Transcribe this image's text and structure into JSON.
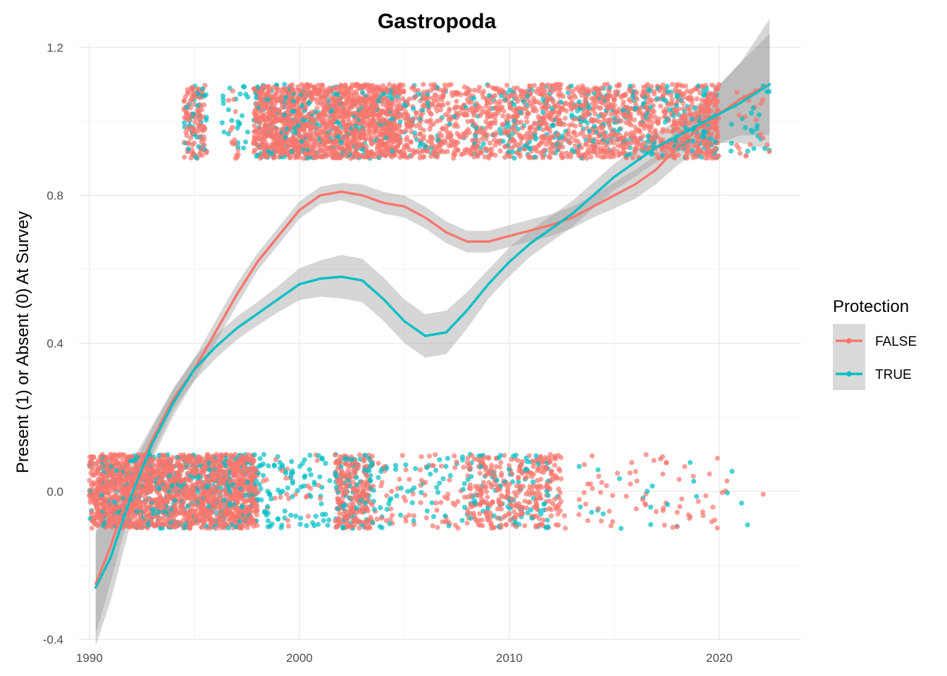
{
  "chart_data": {
    "type": "scatter",
    "title": "Gastropoda",
    "xlabel": "",
    "ylabel": "Present (1) or Absent (0) At Survey",
    "xlim": [
      1989.5,
      2023.9
    ],
    "ylim": [
      -0.4,
      1.21
    ],
    "x_ticks": [
      1990,
      2000,
      2010,
      2020
    ],
    "y_ticks": [
      -0.4,
      0.0,
      0.4,
      0.8,
      1.2
    ],
    "y_tick_labels": [
      "-0.4",
      "0.0",
      "0.4",
      "0.8",
      "1.2"
    ],
    "grid": true,
    "legend": {
      "title": "Protection",
      "placement": "right"
    },
    "jitter": {
      "height": 0.1
    },
    "series": [
      {
        "name": "FALSE",
        "color": "#F8766D",
        "present_ranges": [
          {
            "x": [
              1994.5,
              1995.6
            ],
            "n": 120
          },
          {
            "x": [
              1996.6,
              1997.1
            ],
            "n": 15
          },
          {
            "x": [
              1997.8,
              2004.8
            ],
            "n": 1500
          },
          {
            "x": [
              2004.8,
              2009.6
            ],
            "n": 420
          },
          {
            "x": [
              2009.6,
              2019.1
            ],
            "n": 950
          },
          {
            "x": [
              2019.1,
              2020.0
            ],
            "n": 130
          },
          {
            "x": [
              2020.8,
              2022.4
            ],
            "n": 20
          }
        ],
        "absent_ranges": [
          {
            "x": [
              1990.0,
              1998.0
            ],
            "n": 1900
          },
          {
            "x": [
              1998.0,
              2001.0
            ],
            "n": 25
          },
          {
            "x": [
              2001.7,
              2003.5
            ],
            "n": 260
          },
          {
            "x": [
              2003.5,
              2008.0
            ],
            "n": 70
          },
          {
            "x": [
              2008.0,
              2012.5
            ],
            "n": 330
          },
          {
            "x": [
              2012.5,
              2020.5
            ],
            "n": 70
          },
          {
            "x": [
              2022.0,
              2022.2
            ],
            "n": 1
          }
        ],
        "smooth": {
          "x": [
            1990.3,
            1991,
            1992,
            1993,
            1994,
            1995,
            1996,
            1997,
            1998,
            1999,
            2000,
            2001,
            2002,
            2003,
            2004,
            2005,
            2006,
            2007,
            2008,
            2009,
            2010,
            2011,
            2012,
            2013,
            2014,
            2015,
            2016,
            2017,
            2018,
            2019,
            2020,
            2021,
            2022.4
          ],
          "y": [
            -0.25,
            -0.15,
            0.02,
            0.14,
            0.25,
            0.33,
            0.43,
            0.53,
            0.62,
            0.69,
            0.76,
            0.8,
            0.81,
            0.8,
            0.78,
            0.77,
            0.74,
            0.7,
            0.675,
            0.675,
            0.69,
            0.705,
            0.72,
            0.74,
            0.77,
            0.8,
            0.83,
            0.87,
            0.93,
            0.98,
            1.02,
            1.06,
            1.1
          ],
          "se": [
            0.07,
            0.05,
            0.03,
            0.02,
            0.015,
            0.015,
            0.015,
            0.015,
            0.012,
            0.012,
            0.012,
            0.012,
            0.012,
            0.015,
            0.015,
            0.015,
            0.015,
            0.015,
            0.015,
            0.015,
            0.015,
            0.015,
            0.015,
            0.015,
            0.015,
            0.018,
            0.02,
            0.02,
            0.025,
            0.03,
            0.04,
            0.05,
            0.07
          ]
        }
      },
      {
        "name": "TRUE",
        "color": "#00BFC4",
        "present_ranges": [
          {
            "x": [
              1994.5,
              1995.6
            ],
            "n": 40
          },
          {
            "x": [
              1996.3,
              1997.6
            ],
            "n": 25
          },
          {
            "x": [
              1997.8,
              2004.8
            ],
            "n": 220
          },
          {
            "x": [
              2004.8,
              2009.6
            ],
            "n": 60
          },
          {
            "x": [
              2009.6,
              2019.1
            ],
            "n": 240
          },
          {
            "x": [
              2019.1,
              2020.0
            ],
            "n": 30
          },
          {
            "x": [
              2020.5,
              2022.5
            ],
            "n": 25
          }
        ],
        "absent_ranges": [
          {
            "x": [
              1990.0,
              1998.0
            ],
            "n": 350
          },
          {
            "x": [
              1998.0,
              2001.5
            ],
            "n": 90
          },
          {
            "x": [
              2001.7,
              2003.5
            ],
            "n": 80
          },
          {
            "x": [
              2003.5,
              2008.0
            ],
            "n": 55
          },
          {
            "x": [
              2008.0,
              2012.5
            ],
            "n": 90
          },
          {
            "x": [
              2012.5,
              2021.5
            ],
            "n": 22
          }
        ],
        "smooth": {
          "x": [
            1990.3,
            1991,
            1992,
            1993,
            1994,
            1995,
            1996,
            1997,
            1998,
            1999,
            2000,
            2001,
            2002,
            2003,
            2004,
            2005,
            2006,
            2007,
            2008,
            2009,
            2010,
            2011,
            2012,
            2013,
            2014,
            2015,
            2016,
            2017,
            2018,
            2019,
            2020,
            2021,
            2022.4
          ],
          "y": [
            -0.26,
            -0.18,
            -0.01,
            0.13,
            0.24,
            0.33,
            0.39,
            0.44,
            0.48,
            0.52,
            0.56,
            0.575,
            0.58,
            0.57,
            0.52,
            0.46,
            0.42,
            0.43,
            0.49,
            0.56,
            0.62,
            0.67,
            0.71,
            0.75,
            0.8,
            0.85,
            0.89,
            0.93,
            0.96,
            0.99,
            1.02,
            1.05,
            1.1
          ],
          "se": [
            0.08,
            0.06,
            0.035,
            0.022,
            0.018,
            0.016,
            0.016,
            0.016,
            0.016,
            0.018,
            0.022,
            0.025,
            0.03,
            0.03,
            0.03,
            0.03,
            0.03,
            0.03,
            0.025,
            0.02,
            0.02,
            0.018,
            0.018,
            0.018,
            0.018,
            0.018,
            0.02,
            0.02,
            0.022,
            0.03,
            0.04,
            0.055,
            0.09
          ]
        }
      }
    ]
  }
}
